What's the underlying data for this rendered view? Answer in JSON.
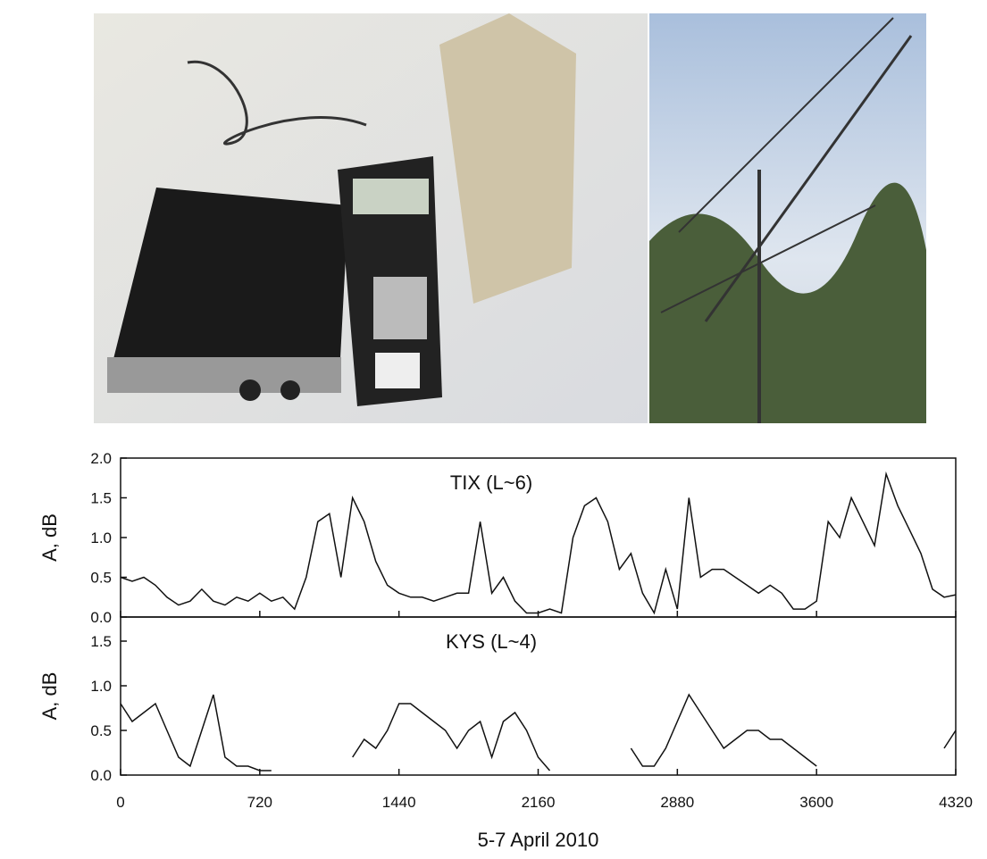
{
  "chart_data": [
    {
      "type": "line",
      "title": "TIX (L~6)",
      "y_label": "A, dB",
      "x": [
        0,
        60,
        120,
        180,
        240,
        300,
        360,
        420,
        480,
        540,
        600,
        660,
        720,
        780,
        840,
        900,
        960,
        1020,
        1080,
        1140,
        1200,
        1260,
        1320,
        1380,
        1440,
        1500,
        1560,
        1620,
        1680,
        1740,
        1800,
        1860,
        1920,
        1980,
        2040,
        2100,
        2160,
        2220,
        2280,
        2340,
        2400,
        2460,
        2520,
        2580,
        2640,
        2700,
        2760,
        2820,
        2880,
        2940,
        3000,
        3060,
        3120,
        3180,
        3240,
        3300,
        3360,
        3420,
        3480,
        3540,
        3600,
        3660,
        3720,
        3780,
        3840,
        3900,
        3960,
        4020,
        4080,
        4140,
        4200,
        4260,
        4320
      ],
      "series": [
        {
          "color": "#111111",
          "values": [
            0.5,
            0.45,
            0.5,
            0.4,
            0.25,
            0.15,
            0.2,
            0.35,
            0.2,
            0.15,
            0.25,
            0.2,
            0.3,
            0.2,
            0.25,
            0.1,
            0.5,
            1.2,
            1.3,
            0.5,
            1.5,
            1.2,
            0.7,
            0.4,
            0.3,
            0.25,
            0.25,
            0.2,
            0.25,
            0.3,
            0.3,
            1.2,
            0.3,
            0.5,
            0.2,
            0.05,
            0.05,
            0.1,
            0.05,
            1.0,
            1.4,
            1.5,
            1.2,
            0.6,
            0.8,
            0.3,
            0.05,
            0.6,
            0.1,
            1.5,
            0.5,
            0.6,
            0.6,
            0.5,
            0.4,
            0.3,
            0.4,
            0.3,
            0.1,
            0.1,
            0.2,
            1.2,
            1.0,
            1.5,
            1.2,
            0.9,
            1.8,
            1.4,
            1.1,
            0.8,
            0.35,
            0.25,
            0.28
          ]
        }
      ],
      "xlim": [
        0,
        4320
      ],
      "ylim": [
        0,
        2.0
      ],
      "yticks": [
        {
          "value": 0,
          "label": "0.0"
        },
        {
          "value": 0.5,
          "label": "0.5"
        },
        {
          "value": 1.0,
          "label": "1.0"
        },
        {
          "value": 1.5,
          "label": "1.5"
        },
        {
          "value": 2.0,
          "label": "2.0"
        }
      ]
    },
    {
      "type": "line",
      "title": "KYS (L~4)",
      "y_label": "A, dB",
      "x_label": "5-7 April 2010",
      "x": [
        0,
        60,
        120,
        180,
        240,
        300,
        360,
        420,
        480,
        540,
        600,
        660,
        720,
        780,
        840,
        900,
        960,
        1020,
        1080,
        1140,
        1200,
        1260,
        1320,
        1380,
        1440,
        1500,
        1560,
        1620,
        1680,
        1740,
        1800,
        1860,
        1920,
        1980,
        2040,
        2100,
        2160,
        2220,
        2280,
        2340,
        2400,
        2460,
        2520,
        2580,
        2640,
        2700,
        2760,
        2820,
        2880,
        2940,
        3000,
        3060,
        3120,
        3180,
        3240,
        3300,
        3360,
        3420,
        3480,
        3540,
        3600,
        3660,
        3720,
        3780,
        3840,
        3900,
        3960,
        4020,
        4080,
        4140,
        4200,
        4260,
        4320
      ],
      "series": [
        {
          "color": "#111111",
          "values": [
            0.8,
            0.6,
            0.7,
            0.8,
            0.5,
            0.2,
            0.1,
            0.5,
            0.9,
            0.2,
            0.1,
            0.1,
            0.05,
            0.05,
            null,
            null,
            null,
            null,
            null,
            null,
            0.2,
            0.4,
            0.3,
            0.5,
            0.8,
            0.8,
            0.7,
            0.6,
            0.5,
            0.3,
            0.5,
            0.6,
            0.2,
            0.6,
            0.7,
            0.5,
            0.2,
            0.05,
            null,
            null,
            null,
            null,
            null,
            null,
            0.3,
            0.1,
            0.1,
            0.3,
            0.6,
            0.9,
            0.7,
            0.5,
            0.3,
            0.4,
            0.5,
            0.5,
            0.4,
            0.4,
            0.3,
            0.2,
            0.1,
            null,
            null,
            null,
            null,
            null,
            null,
            null,
            null,
            null,
            null,
            0.3,
            0.5
          ]
        }
      ],
      "xlim": [
        0,
        4320
      ],
      "ylim": [
        0,
        1.77
      ],
      "yticks": [
        {
          "value": 0,
          "label": "0.0"
        },
        {
          "value": 0.5,
          "label": "0.5"
        },
        {
          "value": 1.0,
          "label": "1.0"
        },
        {
          "value": 1.5,
          "label": "1.5"
        }
      ],
      "xticks": [
        0,
        720,
        1440,
        2160,
        2880,
        3600,
        4320
      ]
    }
  ]
}
